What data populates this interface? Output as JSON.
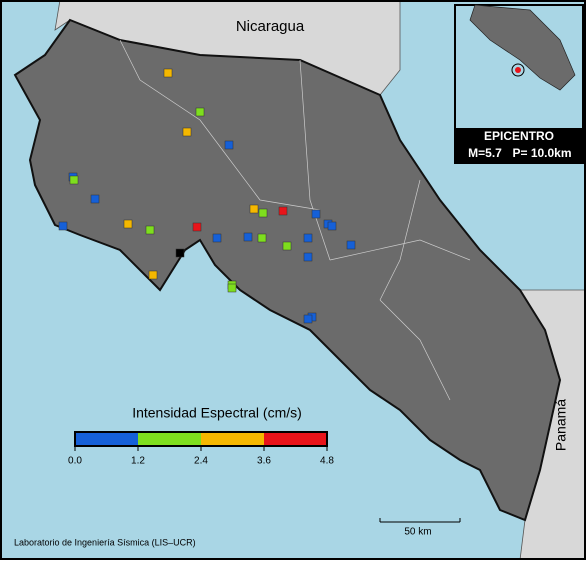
{
  "map": {
    "labels": {
      "north": "Nicaragua",
      "east": "Panamá"
    },
    "epicenter": {
      "title": "EPICENTRO",
      "magnitude": "M=5.7",
      "depth": "P= 10.0km"
    },
    "legend": {
      "title": "Intensidad Espectral (cm/s)",
      "colors": [
        "#1560d8",
        "#7ede1e",
        "#f5b800",
        "#e8141a"
      ],
      "ticks": [
        {
          "value": 0,
          "label": "0.0"
        },
        1.2,
        2.4,
        3.6,
        4.8
      ]
    },
    "scale_bar": "50 km",
    "credit": "Laboratorio de Ingeniería Sísmica (LIS–UCR)"
  }
}
